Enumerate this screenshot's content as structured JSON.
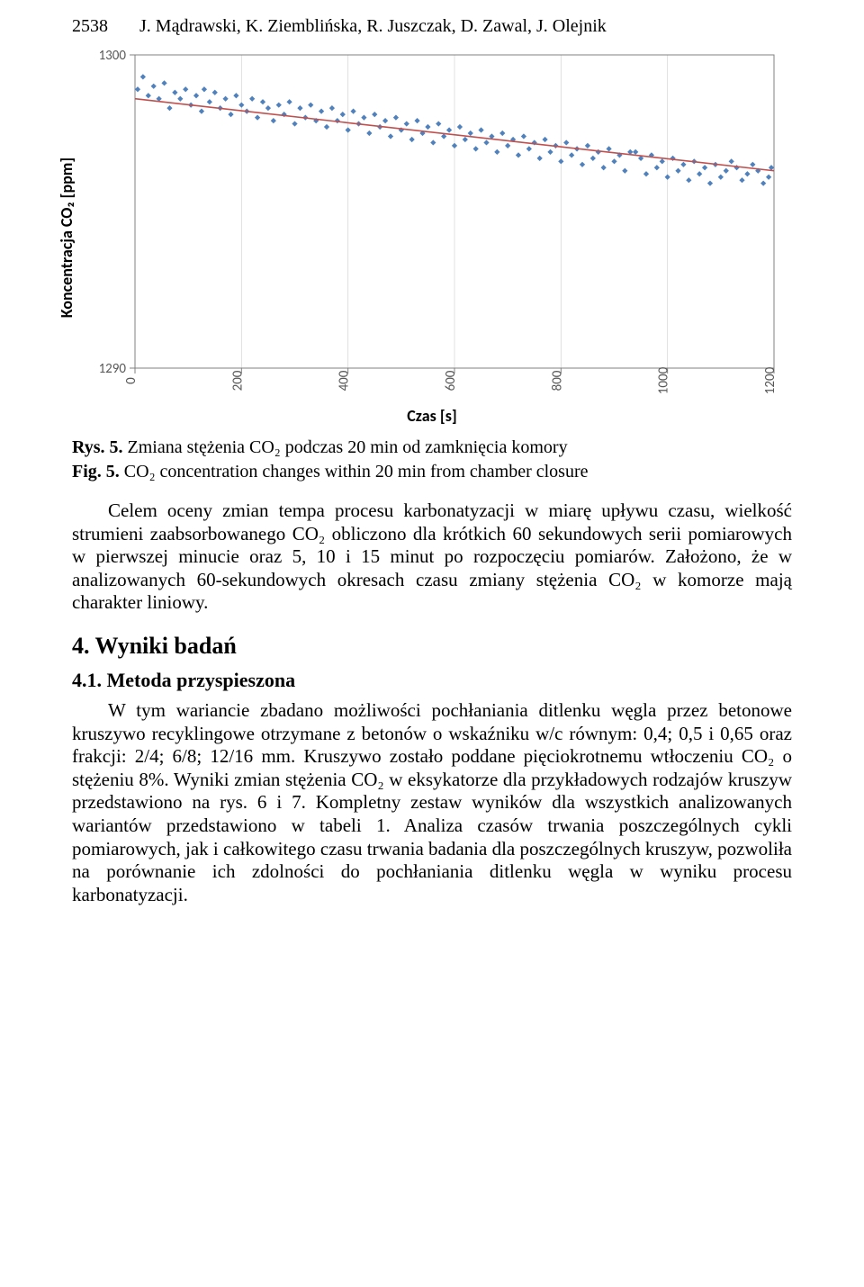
{
  "header": {
    "page_number": "2538",
    "authors": "J. Mądrawski, K. Ziemblińska, R. Juszczak, D. Zawal, J. Olejnik"
  },
  "chart": {
    "type": "scatter_with_trend",
    "x_label": "Czas [s]",
    "y_label": "Koncentracja CO₂ [ppm]",
    "xlim": [
      0,
      1200
    ],
    "ylim": [
      1290,
      1300
    ],
    "x_ticks": [
      0,
      200,
      400,
      600,
      800,
      1000,
      1200
    ],
    "y_ticks": [
      1290,
      1300
    ],
    "marker_color": "#4f81bd",
    "marker_size": 2.2,
    "trend_color": "#c0504d",
    "trend_width": 1.6,
    "grid_color": "#d9d9d9",
    "grid_width": 0.8,
    "axis_color": "#808080",
    "tick_font_size": 15,
    "label_font_size": 18,
    "tick_color": "#595959",
    "background_color": "#ffffff",
    "plot_border": true,
    "trend_line": {
      "x1": 0,
      "y1": 1298.6,
      "x2": 1200,
      "y2": 1296.3
    },
    "scatter_points": [
      [
        5,
        1298.9
      ],
      [
        15,
        1299.3
      ],
      [
        25,
        1298.7
      ],
      [
        35,
        1299.0
      ],
      [
        45,
        1298.6
      ],
      [
        55,
        1299.1
      ],
      [
        65,
        1298.3
      ],
      [
        75,
        1298.8
      ],
      [
        85,
        1298.6
      ],
      [
        95,
        1298.9
      ],
      [
        105,
        1298.4
      ],
      [
        115,
        1298.7
      ],
      [
        125,
        1298.2
      ],
      [
        130,
        1298.9
      ],
      [
        140,
        1298.5
      ],
      [
        150,
        1298.8
      ],
      [
        160,
        1298.3
      ],
      [
        170,
        1298.6
      ],
      [
        180,
        1298.1
      ],
      [
        190,
        1298.7
      ],
      [
        200,
        1298.4
      ],
      [
        210,
        1298.2
      ],
      [
        220,
        1298.6
      ],
      [
        230,
        1298.0
      ],
      [
        240,
        1298.5
      ],
      [
        250,
        1298.3
      ],
      [
        260,
        1297.9
      ],
      [
        270,
        1298.4
      ],
      [
        280,
        1298.1
      ],
      [
        290,
        1298.5
      ],
      [
        300,
        1297.8
      ],
      [
        310,
        1298.3
      ],
      [
        320,
        1298.0
      ],
      [
        330,
        1298.4
      ],
      [
        340,
        1297.9
      ],
      [
        350,
        1298.2
      ],
      [
        360,
        1297.7
      ],
      [
        370,
        1298.3
      ],
      [
        380,
        1297.9
      ],
      [
        390,
        1298.1
      ],
      [
        400,
        1297.6
      ],
      [
        410,
        1298.2
      ],
      [
        420,
        1297.8
      ],
      [
        430,
        1298.0
      ],
      [
        440,
        1297.5
      ],
      [
        450,
        1298.1
      ],
      [
        460,
        1297.7
      ],
      [
        470,
        1297.9
      ],
      [
        480,
        1297.4
      ],
      [
        490,
        1298.0
      ],
      [
        500,
        1297.6
      ],
      [
        510,
        1297.8
      ],
      [
        520,
        1297.3
      ],
      [
        530,
        1297.9
      ],
      [
        540,
        1297.5
      ],
      [
        550,
        1297.7
      ],
      [
        560,
        1297.2
      ],
      [
        570,
        1297.8
      ],
      [
        580,
        1297.4
      ],
      [
        590,
        1297.6
      ],
      [
        600,
        1297.1
      ],
      [
        610,
        1297.7
      ],
      [
        620,
        1297.3
      ],
      [
        630,
        1297.5
      ],
      [
        640,
        1297.0
      ],
      [
        650,
        1297.6
      ],
      [
        660,
        1297.2
      ],
      [
        670,
        1297.4
      ],
      [
        680,
        1296.9
      ],
      [
        690,
        1297.5
      ],
      [
        700,
        1297.1
      ],
      [
        710,
        1297.3
      ],
      [
        720,
        1296.8
      ],
      [
        730,
        1297.4
      ],
      [
        740,
        1297.0
      ],
      [
        750,
        1297.2
      ],
      [
        760,
        1296.7
      ],
      [
        770,
        1297.3
      ],
      [
        780,
        1296.9
      ],
      [
        790,
        1297.1
      ],
      [
        800,
        1296.6
      ],
      [
        810,
        1297.2
      ],
      [
        820,
        1296.8
      ],
      [
        830,
        1297.0
      ],
      [
        840,
        1296.5
      ],
      [
        850,
        1297.1
      ],
      [
        860,
        1296.7
      ],
      [
        870,
        1296.9
      ],
      [
        880,
        1296.4
      ],
      [
        890,
        1297.0
      ],
      [
        900,
        1296.6
      ],
      [
        910,
        1296.8
      ],
      [
        920,
        1296.3
      ],
      [
        930,
        1296.9
      ],
      [
        940,
        1296.9
      ],
      [
        950,
        1296.7
      ],
      [
        960,
        1296.2
      ],
      [
        970,
        1296.8
      ],
      [
        980,
        1296.4
      ],
      [
        990,
        1296.6
      ],
      [
        1000,
        1296.1
      ],
      [
        1010,
        1296.7
      ],
      [
        1020,
        1296.3
      ],
      [
        1030,
        1296.5
      ],
      [
        1040,
        1296.0
      ],
      [
        1050,
        1296.6
      ],
      [
        1060,
        1296.2
      ],
      [
        1070,
        1296.4
      ],
      [
        1080,
        1295.9
      ],
      [
        1090,
        1296.5
      ],
      [
        1100,
        1296.1
      ],
      [
        1110,
        1296.3
      ],
      [
        1120,
        1296.6
      ],
      [
        1130,
        1296.4
      ],
      [
        1140,
        1296.0
      ],
      [
        1150,
        1296.2
      ],
      [
        1160,
        1296.5
      ],
      [
        1170,
        1296.3
      ],
      [
        1180,
        1295.9
      ],
      [
        1190,
        1296.1
      ],
      [
        1195,
        1296.4
      ]
    ]
  },
  "caption": {
    "line1_bold": "Rys. 5.",
    "line1_rest": " Zmiana stężenia CO₂ podczas 20 min od zamknięcia komory",
    "line2_bold": "Fig. 5.",
    "line2_rest": " CO₂ concentration changes within 20 min from chamber closure"
  },
  "para1": "Celem oceny zmian tempa procesu karbonatyzacji w miarę upływu czasu, wielkość strumieni zaabsorbowanego CO₂ obliczono dla krótkich 60 sekundowych serii pomiarowych w pierwszej minucie oraz 5, 10 i 15 minut po rozpoczęciu pomiarów. Założono, że w analizowanych 60-sekundowych okresach czasu zmiany stężenia CO₂ w komorze mają charakter liniowy.",
  "heading_results": "4. Wyniki badań",
  "subheading_method": "4.1. Metoda przyspieszona",
  "para2": "W tym wariancie zbadano możliwości pochłaniania ditlenku węgla przez betonowe kruszywo recyklingowe otrzymane z betonów o wskaźniku w/c równym: 0,4; 0,5 i 0,65 oraz frakcji: 2/4; 6/8; 12/16 mm. Kruszywo zostało poddane pięciokrotnemu wtłoczeniu CO₂ o stężeniu 8%. Wyniki zmian stężenia CO₂ w eksykatorze dla przykładowych rodzajów kruszyw przedstawiono na rys. 6 i 7. Kompletny zestaw wyników dla wszystkich analizowanych wariantów przedstawiono w tabeli 1. Analiza czasów trwania poszczególnych cykli pomiarowych, jak i całkowitego czasu trwania badania dla poszczególnych kruszyw, pozwoliła na porównanie ich zdolności do pochłaniania ditlenku węgla w wyniku procesu karbonatyzacji."
}
